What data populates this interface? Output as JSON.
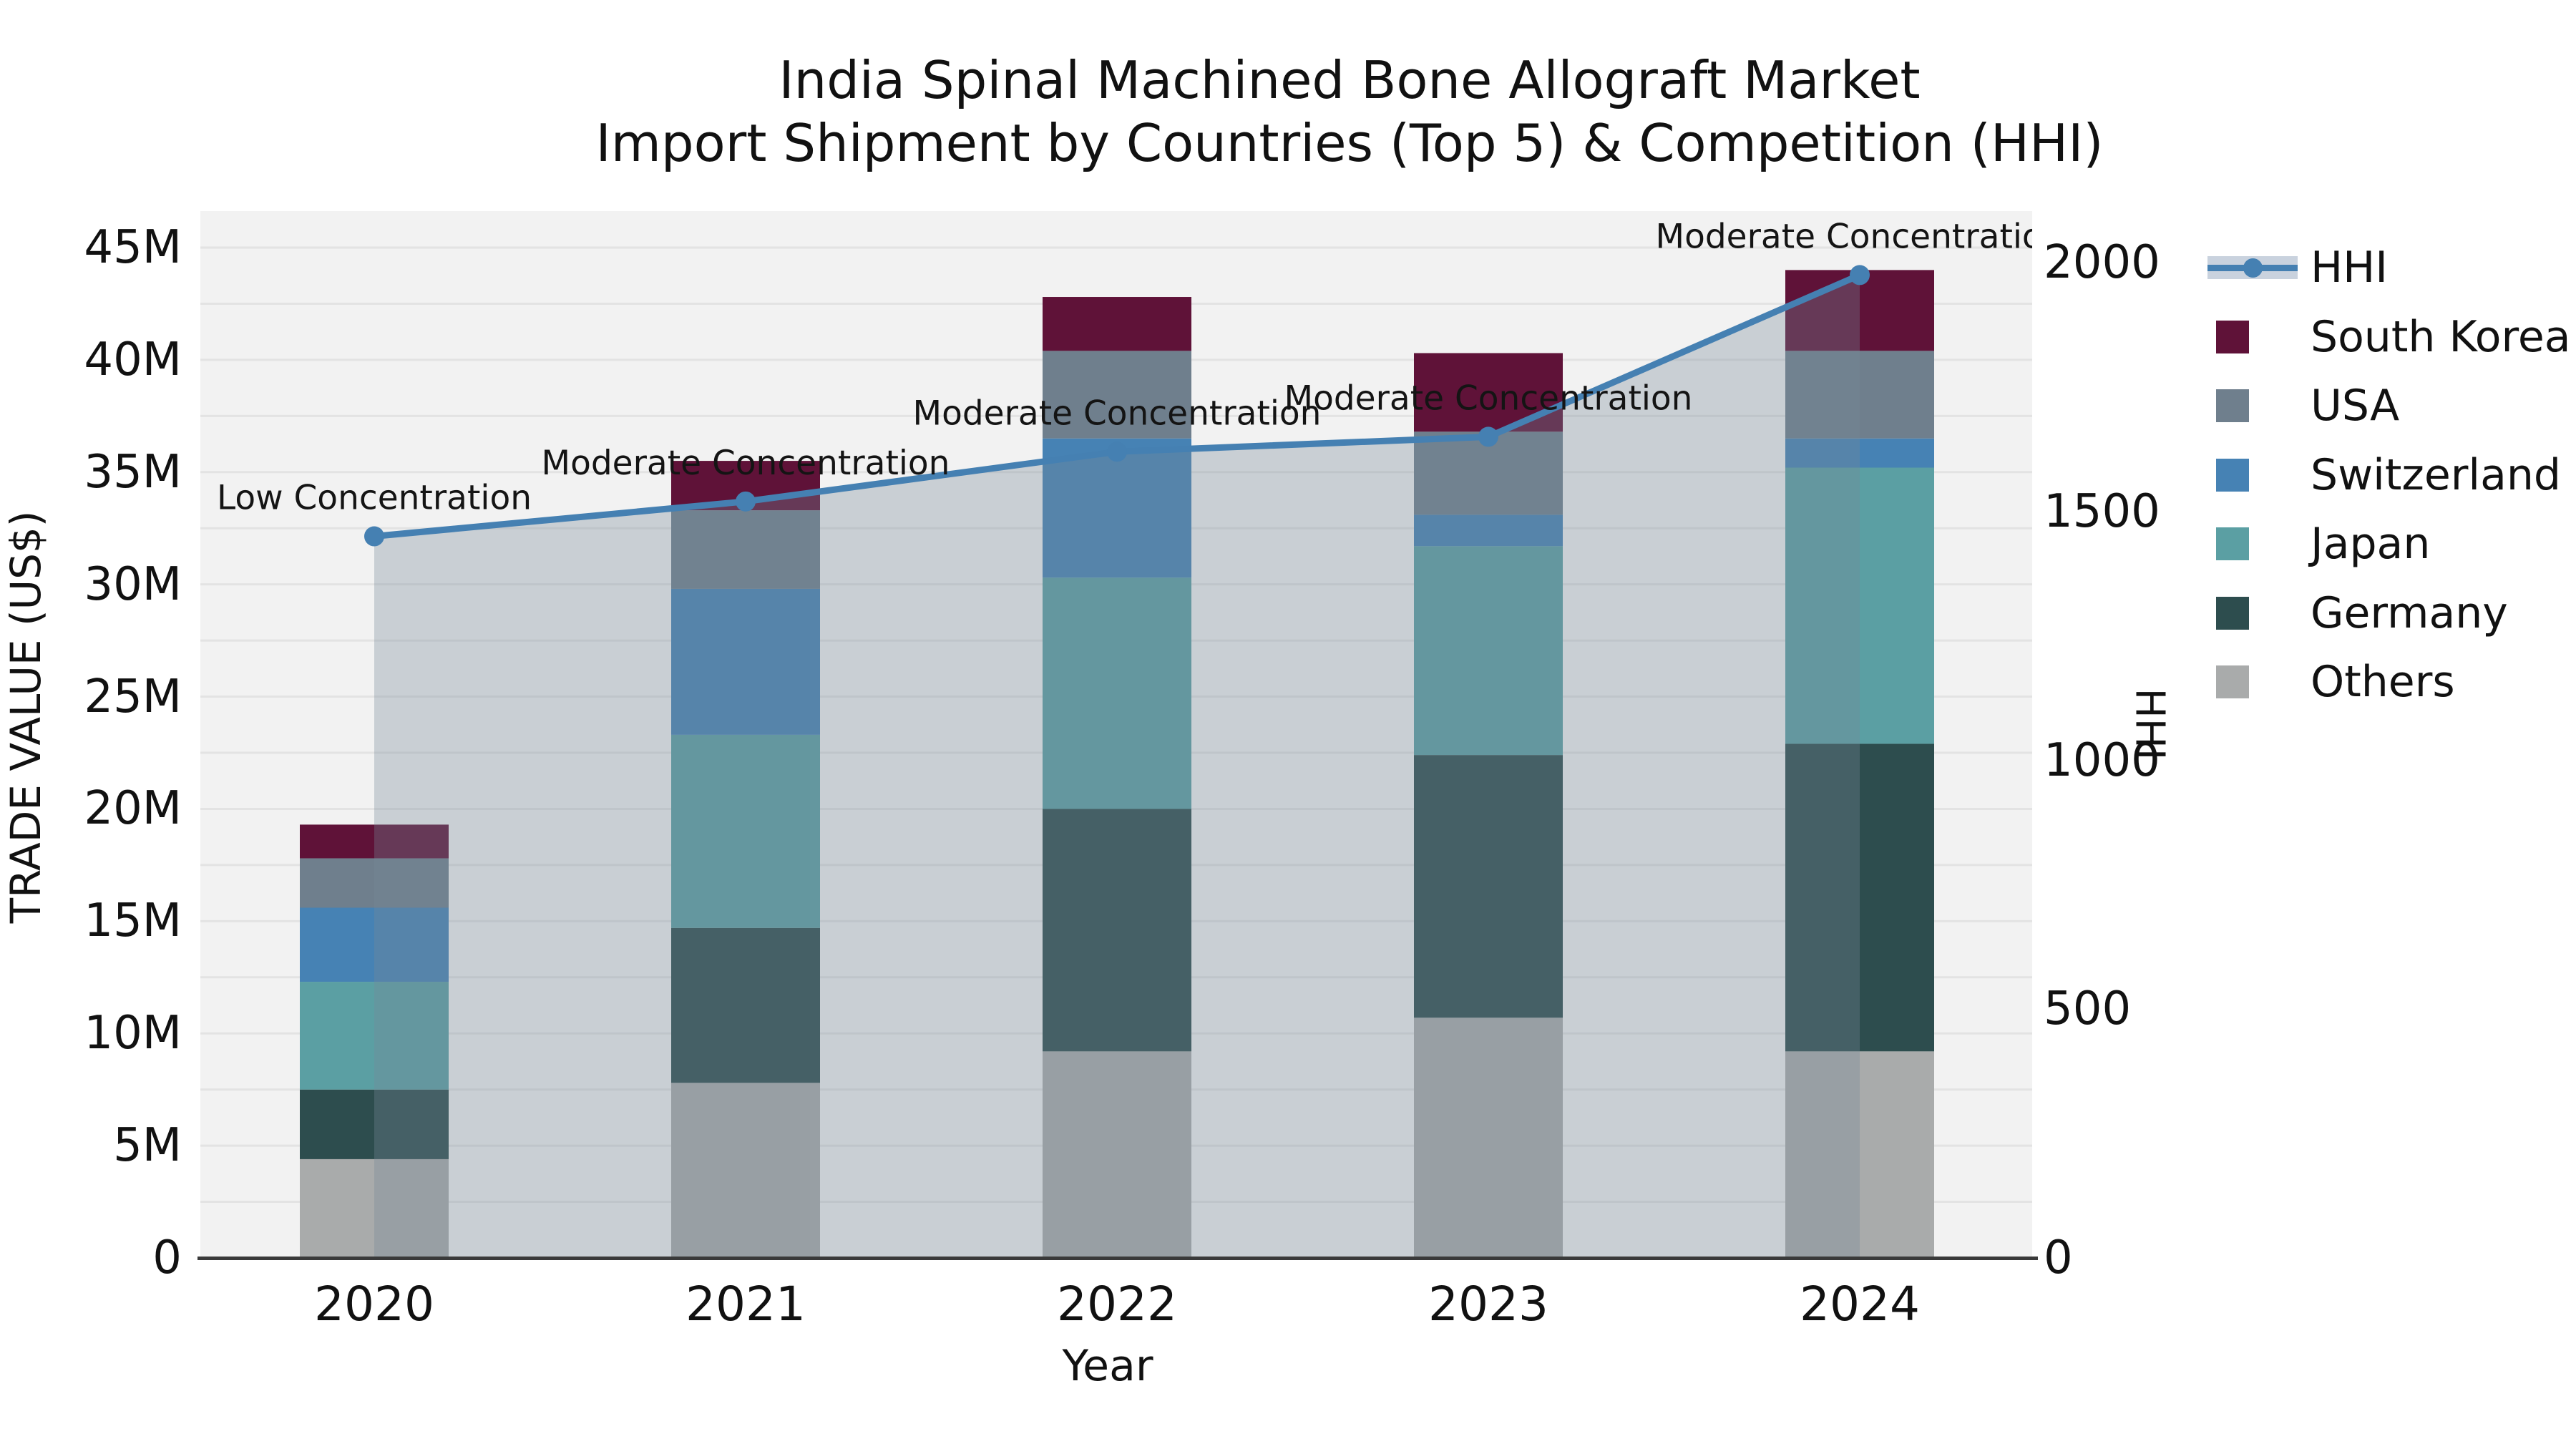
{
  "title": {
    "line1": "India Spinal Machined Bone Allograft Market",
    "line2": "Import Shipment by Countries (Top 5) & Competition (HHI)"
  },
  "axes": {
    "left": {
      "title": "TRADE VALUE (US$)",
      "tick_labels": [
        "0",
        "5M",
        "10M",
        "15M",
        "20M",
        "25M",
        "30M",
        "35M",
        "40M",
        "45M"
      ],
      "tick_values": [
        0,
        5,
        10,
        15,
        20,
        25,
        30,
        35,
        40,
        45
      ],
      "range": [
        0,
        45
      ]
    },
    "right": {
      "title": "HHI",
      "tick_labels": [
        "0",
        "500",
        "1000",
        "1500",
        "2000"
      ],
      "tick_values": [
        0,
        500,
        1000,
        1500,
        2000
      ],
      "range": [
        0,
        2000
      ]
    },
    "x": {
      "title": "Year",
      "categories": [
        "2020",
        "2021",
        "2022",
        "2023",
        "2024"
      ]
    }
  },
  "legend": {
    "entries": [
      {
        "label": "HHI",
        "type": "line",
        "color": "#4580b2"
      },
      {
        "label": "South Korea",
        "type": "swatch",
        "color": "#5f1238"
      },
      {
        "label": "USA",
        "type": "swatch",
        "color": "#6f7f8d"
      },
      {
        "label": "Switzerland",
        "type": "swatch",
        "color": "#4682b4"
      },
      {
        "label": "Japan",
        "type": "swatch",
        "color": "#5b9fa3"
      },
      {
        "label": "Germany",
        "type": "swatch",
        "color": "#2d4d4e"
      },
      {
        "label": "Others",
        "type": "swatch",
        "color": "#a9abab"
      }
    ]
  },
  "chart_data": {
    "type": "bar+line",
    "title": "India Spinal Machined Bone Allograft Market Import Shipment by Countries (Top 5) & Competition (HHI)",
    "xlabel": "Year",
    "ylabel_left": "TRADE VALUE (US$)",
    "ylabel_right": "HHI",
    "ylim_left_millions": [
      0,
      45
    ],
    "ylim_right": [
      0,
      2000
    ],
    "grid": true,
    "legend_position": "right",
    "categories": [
      "2020",
      "2021",
      "2022",
      "2023",
      "2024"
    ],
    "bar_unit": "millions US$",
    "stack_order": "bottom to top",
    "series": [
      {
        "name": "Others",
        "color": "#a9abab",
        "values": [
          4.4,
          7.8,
          9.2,
          10.7,
          9.2
        ]
      },
      {
        "name": "Germany",
        "color": "#2d4d4e",
        "values": [
          3.1,
          6.9,
          10.8,
          11.7,
          13.7
        ]
      },
      {
        "name": "Japan",
        "color": "#5b9fa3",
        "values": [
          4.8,
          8.6,
          10.3,
          9.3,
          12.3
        ]
      },
      {
        "name": "Switzerland",
        "color": "#4682b4",
        "values": [
          3.3,
          6.5,
          6.2,
          1.4,
          1.3
        ]
      },
      {
        "name": "USA",
        "color": "#6f7f8d",
        "values": [
          2.2,
          3.5,
          3.9,
          3.7,
          3.9
        ]
      },
      {
        "name": "South Korea",
        "color": "#5f1238",
        "values": [
          1.5,
          2.2,
          2.4,
          3.5,
          3.6
        ]
      }
    ],
    "bar_totals_millions": [
      19.3,
      35.5,
      42.8,
      40.3,
      44.0
    ],
    "line_series": {
      "name": "HHI",
      "color": "#4580b2",
      "fill_color": "rgba(119,136,153,0.33)",
      "values": [
        1450,
        1520,
        1620,
        1650,
        1975
      ]
    },
    "annotations": [
      "Low Concentration",
      "Moderate Concentration",
      "Moderate Concentration",
      "Moderate Concentration",
      "Moderate Concentration"
    ]
  }
}
